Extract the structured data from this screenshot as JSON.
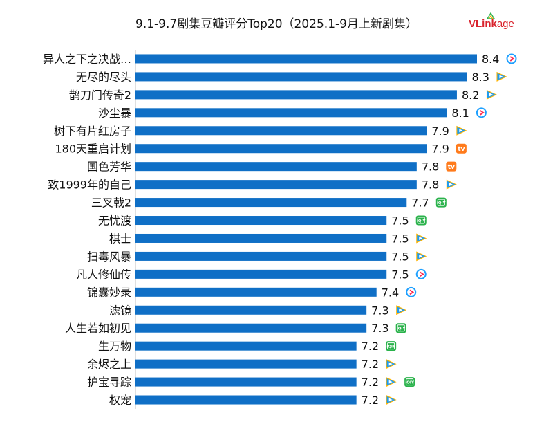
{
  "title": "9.1-9.7剧集豆瓣评分Top20（2025.1-9月上新剧集）",
  "logo": {
    "text_main": "VLink",
    "text_sub": "age"
  },
  "colors": {
    "bar": "#0f6fc6",
    "axis": "#bfbfbf",
    "text": "#111111"
  },
  "platform_icons": {
    "tencent": {
      "name": "tencent-video-icon",
      "color": "#1e9bf0",
      "accent": "#ffb400"
    },
    "youku": {
      "name": "youku-icon",
      "color": "#1ea0ff",
      "accent": "#ff2a4f"
    },
    "iqiyi": {
      "name": "iqiyi-icon",
      "color": "#2ab24b",
      "label": "iQIY"
    },
    "mango": {
      "name": "mango-tv-icon",
      "color": "#ff7b1c",
      "label": "tv"
    }
  },
  "chart_data": {
    "type": "bar",
    "orientation": "horizontal",
    "title": "9.1-9.7剧集豆瓣评分Top20（2025.1-9月上新剧集）",
    "xlim": [
      5,
      8.4
    ],
    "grid": false,
    "categories": [
      "异人之下之决战…",
      "无尽的尽头",
      "鹊刀门传奇2",
      "沙尘暴",
      "树下有片红房子",
      "180天重启计划",
      "国色芳华",
      "致1999年的自己",
      "三叉戟2",
      "无忧渡",
      "棋士",
      "扫毒风暴",
      "凡人修仙传",
      "锦囊妙录",
      "滤镜",
      "人生若如初见",
      "生万物",
      "余烬之上",
      "护宝寻踪",
      "权宠"
    ],
    "values": [
      8.4,
      8.3,
      8.2,
      8.1,
      7.9,
      7.9,
      7.8,
      7.8,
      7.7,
      7.5,
      7.5,
      7.5,
      7.5,
      7.4,
      7.3,
      7.3,
      7.2,
      7.2,
      7.2,
      7.2
    ],
    "value_labels": [
      "8.4",
      "8.3",
      "8.2",
      "8.1",
      "7.9",
      "7.9",
      "7.8",
      "7.8",
      "7.7",
      "7.5",
      "7.5",
      "7.5",
      "7.5",
      "7.4",
      "7.3",
      "7.3",
      "7.2",
      "7.2",
      "7.2",
      "7.2"
    ],
    "platforms": [
      [
        "youku"
      ],
      [
        "tencent"
      ],
      [
        "tencent"
      ],
      [
        "youku"
      ],
      [
        "tencent"
      ],
      [
        "mango"
      ],
      [
        "mango"
      ],
      [
        "tencent"
      ],
      [
        "iqiyi"
      ],
      [
        "iqiyi"
      ],
      [
        "tencent"
      ],
      [
        "tencent"
      ],
      [
        "youku"
      ],
      [
        "youku"
      ],
      [
        "tencent"
      ],
      [
        "iqiyi"
      ],
      [
        "iqiyi"
      ],
      [
        "tencent"
      ],
      [
        "tencent",
        "iqiyi"
      ],
      [
        "tencent"
      ]
    ]
  }
}
